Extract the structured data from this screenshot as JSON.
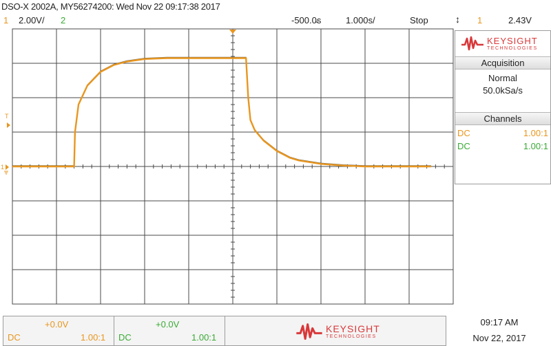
{
  "header": {
    "title": "DSO-X 2002A, MY56274200: Wed Nov 22 09:17:38 2017"
  },
  "status_bar": {
    "ch1_number": "1",
    "ch1_scale": "2.00V/",
    "ch2_number": "2",
    "time_offset": "-500.0̵s",
    "time_scale": "1.000s/",
    "run_state": "Stop",
    "trigger_source": "1",
    "trigger_level": "2.43V"
  },
  "display": {
    "ground_marker": "1",
    "trigger_marker": "T"
  },
  "right_panel": {
    "brand_main": "KEYSIGHT",
    "brand_sub": "TECHNOLOGIES",
    "acquisition": {
      "header": "Acquisition",
      "mode": "Normal",
      "rate": "50.0kSa/s"
    },
    "channels": {
      "header": "Channels",
      "rows": [
        {
          "coupling": "DC",
          "ratio": "1.00:1",
          "color": "#e8961f"
        },
        {
          "coupling": "DC",
          "ratio": "1.00:1",
          "color": "#3aaa35"
        }
      ]
    }
  },
  "bottom_bar": {
    "ch1": {
      "offset": "+0.0V",
      "coupling": "DC",
      "ratio": "1.00:1"
    },
    "ch2": {
      "offset": "+0.0V",
      "coupling": "DC",
      "ratio": "1.00:1"
    },
    "brand_main": "KEYSIGHT",
    "brand_sub": "TECHNOLOGIES"
  },
  "clock": {
    "time": "09:17 AM",
    "date": "Nov 22, 2017"
  },
  "colors": {
    "ch1": "#e8961f",
    "ch2": "#3aaa35",
    "brand": "#d9383a",
    "grid": "#4a4a4a"
  },
  "chart_data": {
    "type": "line",
    "title": "",
    "xlabel": "",
    "ylabel": "",
    "x_unit": "s",
    "y_unit": "V",
    "xlim": [
      -5.5,
      4.5
    ],
    "ylim": [
      -8.0,
      8.0
    ],
    "x_divisions": 10,
    "y_divisions": 8,
    "grid": true,
    "series": [
      {
        "channel": "1",
        "color": "#e8961f",
        "x": [
          -5.5,
          -4.1,
          -4.08,
          -4.0,
          -3.8,
          -3.5,
          -3.2,
          -2.9,
          -2.5,
          -2.0,
          -1.5,
          -1.0,
          -0.5,
          -0.2,
          -0.15,
          -0.1,
          0.0,
          0.2,
          0.5,
          0.8,
          1.0,
          1.5,
          2.0,
          2.5,
          3.0,
          3.5,
          4.0
        ],
        "y": [
          0.0,
          0.0,
          2.0,
          3.6,
          4.7,
          5.5,
          5.9,
          6.1,
          6.25,
          6.3,
          6.3,
          6.3,
          6.3,
          6.3,
          4.0,
          2.7,
          2.1,
          1.5,
          0.9,
          0.5,
          0.35,
          0.15,
          0.05,
          0.0,
          0.0,
          0.0,
          0.0
        ]
      }
    ]
  }
}
